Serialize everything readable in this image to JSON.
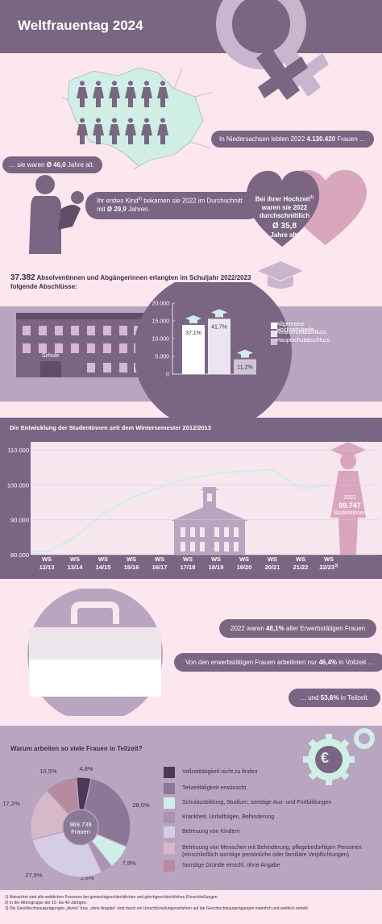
{
  "title": "Weltfrauentag 2024",
  "intro": {
    "population_prefix": "In Niedersachsen lebten 2022 ",
    "population_value": "4.130.420",
    "population_suffix": " Frauen …",
    "age_prefix": "… sie waren ",
    "age_value": "Ø 46,0",
    "age_suffix": " Jahre alt.",
    "child_text": "Ihr erstes Kind",
    "child_sup": "2)",
    "child_text2": " bekamen sie 2022 im Durchschnitt mit ",
    "child_value": "Ø 29,9",
    "child_suffix": " Jahren.",
    "wedding_line1": "Bei ihrer Hochzeit",
    "wedding_sup": "1)",
    "wedding_line2": "waren sie 2022",
    "wedding_line3": "durchschnittlich",
    "wedding_value": "Ø 35,8",
    "wedding_line4": "Jahre alt."
  },
  "school": {
    "count": "37.382",
    "text": " Absolventinnen und Abgängerinnen erlangten im Schuljahr 2022/2023",
    "text2": "folgende Abschlüsse:",
    "building_label": "Schule"
  },
  "colors": {
    "purple": "#7a6582",
    "light_purple": "#b9a5c0",
    "mint": "#cfeee6",
    "pink_bg": "#fce7ef",
    "dark": "#3b2c48"
  },
  "chart_data": [
    {
      "type": "bar",
      "categories": [
        "Allgemeine Hochschulreife",
        "Realschulabschluss",
        "Hauptschulabschluss"
      ],
      "values": [
        13870,
        15590,
        4190
      ],
      "data_labels": [
        "37,1%",
        "41,7%",
        "11,2%"
      ],
      "ylim": [
        0,
        20000
      ],
      "yticks": [
        "0",
        "5.000",
        "10.000",
        "15.000",
        "20.000"
      ],
      "colors": [
        "#ffffff",
        "#ece4f0",
        "#cfc4d6"
      ],
      "legend": [
        "Allgemeine Hochschulreife",
        "Realschulabschluss",
        "Hauptschulabschluss"
      ]
    },
    {
      "type": "line",
      "title": "Die Entwicklung der Studentinnen seit dem Wintersemester 2012/2013",
      "x": [
        "WS 12/13",
        "WS 13/14",
        "WS 14/15",
        "WS 15/16",
        "WS 16/17",
        "WS 17/18",
        "WS 18/19",
        "WS 19/20",
        "WS 20/21",
        "WS 21/22",
        "WS 22/23"
      ],
      "x_top": [
        "WS",
        "WS",
        "WS",
        "WS",
        "WS",
        "WS",
        "WS",
        "WS",
        "WS",
        "WS",
        "WS"
      ],
      "x_bottom": [
        "12/13",
        "13/14",
        "14/15",
        "15/16",
        "16/17",
        "17/18",
        "18/19",
        "19/20",
        "20/21",
        "21/22",
        "22/23"
      ],
      "last_sup": "3)",
      "values": [
        80800,
        85000,
        91800,
        96300,
        99300,
        101800,
        103200,
        104000,
        104300,
        99000,
        99747
      ],
      "ylim": [
        80000,
        110000
      ],
      "yticks": [
        "80.000",
        "90.000",
        "100.000",
        "110.000"
      ],
      "annotation_year": "2022",
      "annotation_value": "99.747",
      "annotation_label": "Studentinnen"
    },
    {
      "type": "pie",
      "title": "Warum arbeiten so viele Frauen in Teilzeit?",
      "center_value": "969.739",
      "center_label": "Frauen",
      "categories": [
        "Vollzeittätigkeit nicht zu finden",
        "Teilzeittätigkeit erwünscht",
        "Schulausbildung, Studium, sonstige Aus- und Fortbildungen",
        "Krankheit, Unfallfolgen, Behinderung",
        "Betreuung von Kindern",
        "Betreuung von Menschen mit Behinderung, pflegebedürftigen Personen",
        "Sonstige Gründe einschl. ohne Angabe"
      ],
      "legend_extra": "(einschließlich sonstige persönliche oder familiäre Verpflichtungen)",
      "values": [
        4.8,
        28.0,
        7.9,
        3.8,
        27.9,
        17.2,
        10.5
      ],
      "labels": [
        "4,8%",
        "28,0%",
        "7,9%",
        "3,8%",
        "27,9%",
        "17,2%",
        "10,5%"
      ],
      "colors": [
        "#4a3a55",
        "#8b7898",
        "#cfeee6",
        "#a993b3",
        "#d5cde6",
        "#d7b8c9",
        "#b8899f"
      ]
    }
  ],
  "work": {
    "line1_prefix": "2022 waren ",
    "line1_value": "48,1%",
    "line1_suffix": " aller Erwerbstätigen Frauen",
    "line2_prefix": "Von den erwerbstätigen Frauen arbeiteten nur ",
    "line2_value": "46,4%",
    "line2_suffix": " in Vollzeit …",
    "line3_prefix": "… und ",
    "line3_value": "53,6%",
    "line3_suffix": " in Teilzeit."
  },
  "footnotes": [
    "1) Betrachtet sind alle weiblichen Personen bei gemischtgeschlechtlichen und gleichgeschlechtlichen Eheschließungen.",
    "2) In der Altersgruppe der 15- bis 49-Jährigen.",
    "3) Die Geschlechtsausprägungen „divers“ bzw. „ohne Angabe“ sind durch ein Umschlüsselungsverfahren auf die Geschlechtsausprägungen männlich und weiblich verteilt."
  ],
  "icons": [
    "venus-icon",
    "woman-figure-icon",
    "mother-child-icon",
    "heart-icon",
    "graduation-cap-icon",
    "school-building-icon",
    "university-building-icon",
    "graduate-woman-icon",
    "bag-icon",
    "gear-icon",
    "euro-icon"
  ]
}
